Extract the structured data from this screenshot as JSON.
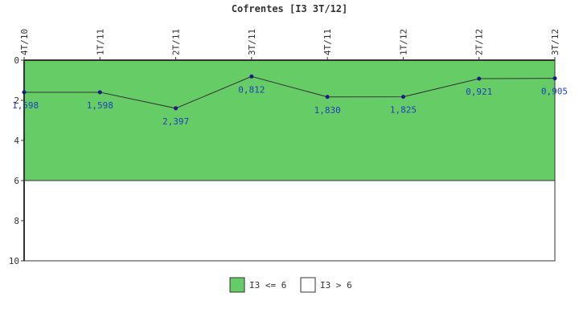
{
  "colors": {
    "ok_band": "#66cc66",
    "warn_band": "#ffffff",
    "line": "#333333",
    "point": "#1a1a8c",
    "label": "#1f3fbf",
    "axis": "#333333"
  },
  "chart_data": {
    "type": "line",
    "title": "Cofrentes [I3 3T/12]",
    "categories": [
      "4T/10",
      "1T/11",
      "2T/11",
      "3T/11",
      "4T/11",
      "1T/12",
      "2T/12",
      "3T/12"
    ],
    "values": [
      1.598,
      1.598,
      2.397,
      0.812,
      1.83,
      1.825,
      0.921,
      0.905
    ],
    "value_labels": [
      "1,598",
      "1,598",
      "2,397",
      "0,812",
      "1,830",
      "1,825",
      "0,921",
      "0,905"
    ],
    "ylim": [
      0,
      10
    ],
    "y_inverted": true,
    "y_ticks": [
      0,
      2,
      4,
      6,
      8,
      10
    ],
    "x_axis_position": "top",
    "x_tick_rotation": "vertical",
    "threshold": 6,
    "bands": [
      {
        "label": "I3 <= 6",
        "from": 0,
        "to": 6,
        "color": "#66cc66"
      },
      {
        "label": "I3 > 6",
        "from": 6,
        "to": 10,
        "color": "#ffffff"
      }
    ],
    "legend_position": "bottom-center",
    "grid": false
  }
}
